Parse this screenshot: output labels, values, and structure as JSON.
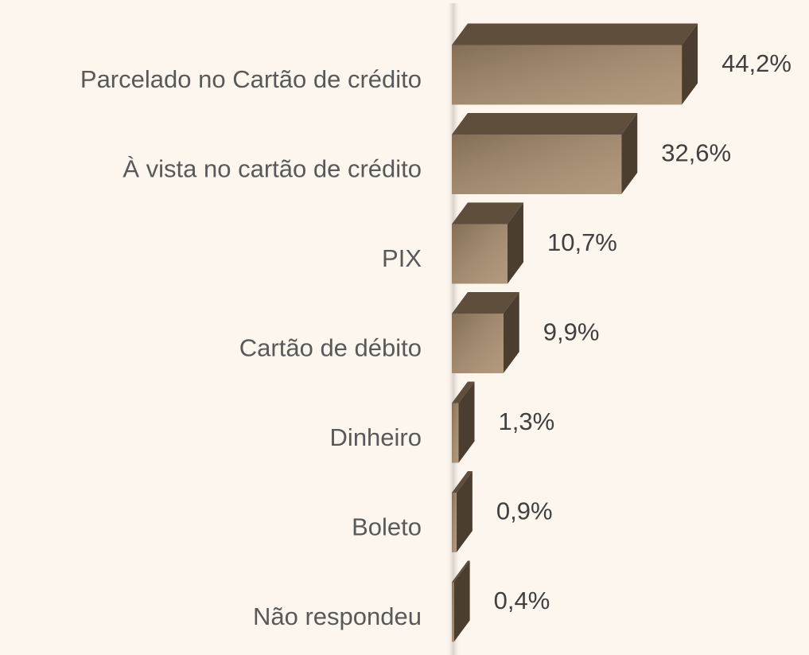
{
  "chart_data": {
    "type": "bar",
    "orientation": "horizontal",
    "categories": [
      "Parcelado no Cartão de crédito",
      "À vista no cartão de crédito",
      "PIX",
      "Cartão de débito",
      "Dinheiro",
      "Boleto",
      "Não respondeu"
    ],
    "values": [
      44.2,
      32.6,
      10.7,
      9.9,
      1.3,
      0.9,
      0.4
    ],
    "value_labels": [
      "44,2%",
      "32,6%",
      "10,7%",
      "9,9%",
      "1,3%",
      "0,9%",
      "0,4%"
    ],
    "color": "#a88c6c"
  }
}
